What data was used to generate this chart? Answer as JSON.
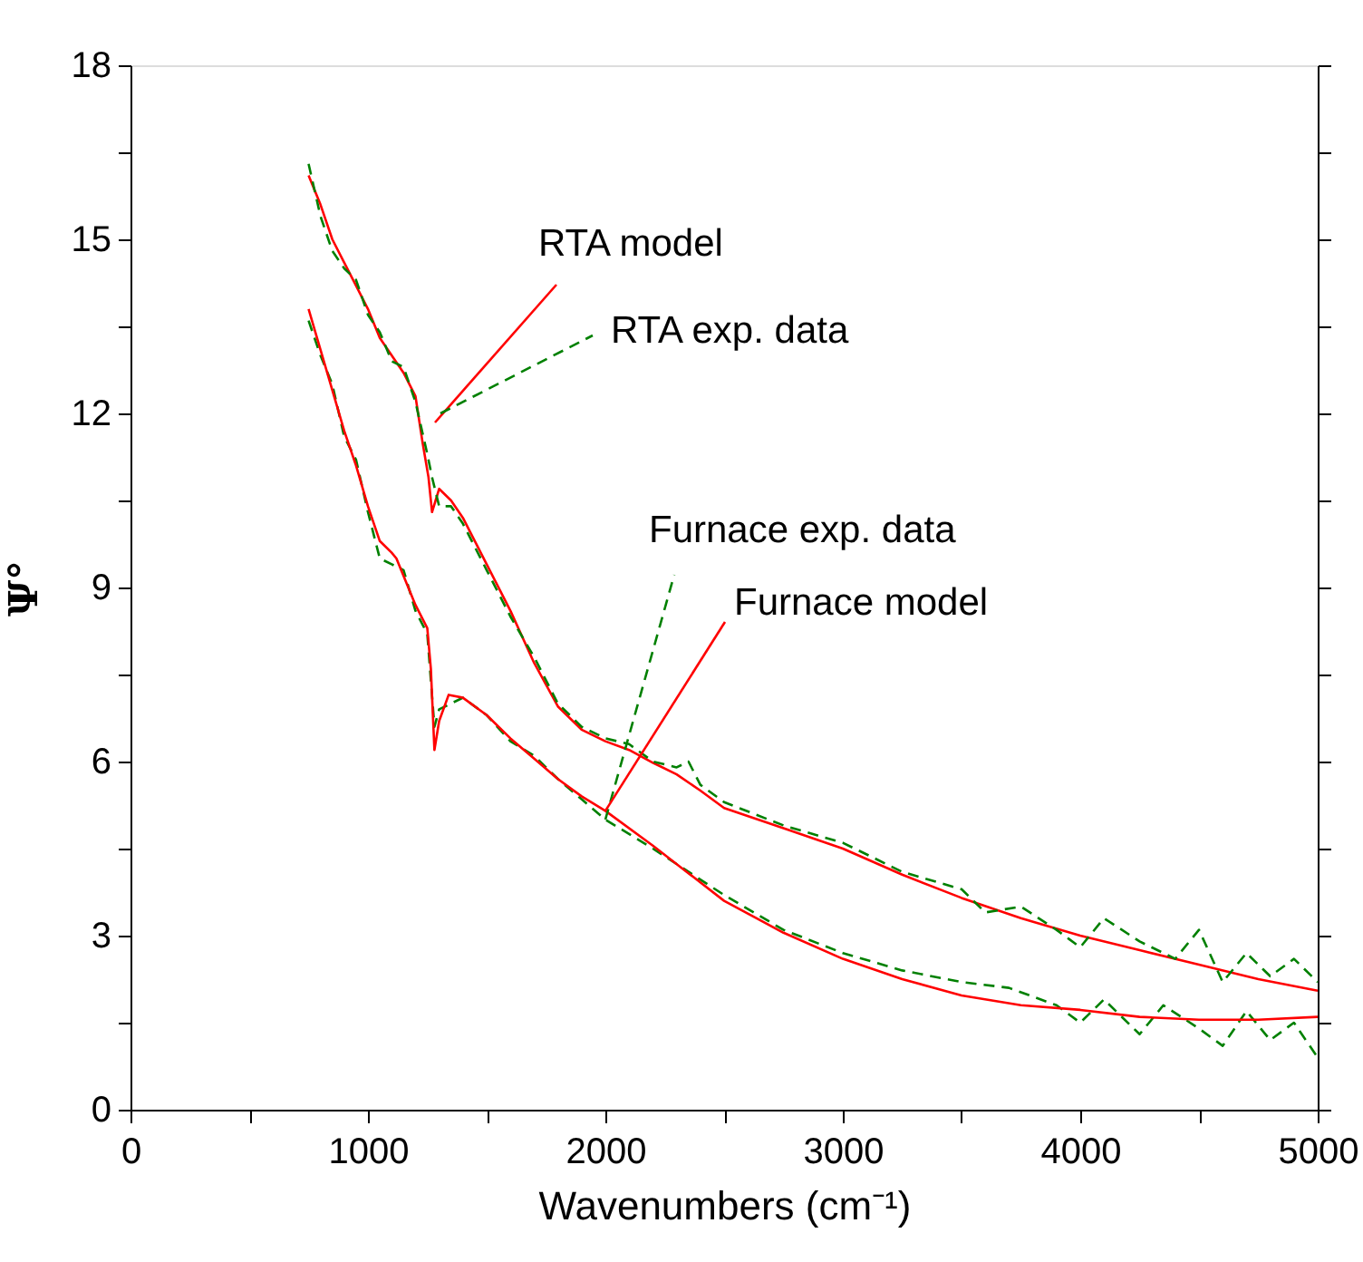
{
  "chart_data": {
    "type": "line",
    "xlabel": "Wavenumbers (cm⁻¹)",
    "ylabel": "Ψ°",
    "xlim": [
      0,
      5000
    ],
    "ylim": [
      0,
      18
    ],
    "xticks": [
      0,
      {
        "value": 500,
        "label": null
      },
      1000,
      {
        "value": 1500,
        "label": null
      },
      2000,
      {
        "value": 2500,
        "label": null
      },
      3000,
      {
        "value": 3500,
        "label": null
      },
      4000,
      {
        "value": 4500,
        "label": null
      },
      5000
    ],
    "yticks": [
      0,
      {
        "value": 1.5,
        "label": null
      },
      3,
      {
        "value": 4.5,
        "label": null
      },
      6,
      {
        "value": 7.5,
        "label": null
      },
      9,
      {
        "value": 10.5,
        "label": null
      },
      12,
      {
        "value": 13.5,
        "label": null
      },
      15,
      {
        "value": 16.5,
        "label": null
      },
      18
    ],
    "grid": false,
    "marker": "none",
    "series": [
      {
        "color": "#ff0000",
        "line_style": "solid",
        "x": [
          750,
          800,
          850,
          900,
          950,
          1000,
          1050,
          1100,
          1150,
          1200,
          1230,
          1255,
          1270,
          1285,
          1300,
          1350,
          1400,
          1500,
          1600,
          1700,
          1800,
          1900,
          2000,
          2100,
          2200,
          2300,
          2400,
          2500,
          2750,
          3000,
          3250,
          3500,
          3750,
          4000,
          4250,
          4500,
          4750,
          5000
        ],
        "values": [
          16.1,
          15.6,
          15.0,
          14.6,
          14.2,
          13.8,
          13.3,
          13.0,
          12.7,
          12.3,
          11.5,
          10.9,
          10.3,
          10.5,
          10.7,
          10.5,
          10.2,
          9.4,
          8.6,
          7.7,
          6.95,
          6.55,
          6.35,
          6.2,
          5.98,
          5.78,
          5.5,
          5.2,
          4.85,
          4.5,
          4.05,
          3.65,
          3.3,
          3.0,
          2.75,
          2.5,
          2.25,
          2.05
        ]
      },
      {
        "color": "#008000",
        "line_style": "dashed",
        "x": [
          750,
          800,
          850,
          900,
          950,
          1000,
          1050,
          1100,
          1150,
          1200,
          1250,
          1270,
          1300,
          1350,
          1400,
          1500,
          1600,
          1700,
          1800,
          1900,
          2000,
          2100,
          2200,
          2300,
          2350,
          2400,
          2500,
          2750,
          3000,
          3250,
          3500,
          3600,
          3750,
          3900,
          4000,
          4100,
          4250,
          4400,
          4500,
          4600,
          4700,
          4800,
          4900,
          5000
        ],
        "values": [
          16.3,
          15.4,
          14.8,
          14.5,
          14.3,
          13.7,
          13.4,
          12.9,
          12.8,
          12.2,
          11.3,
          10.9,
          10.4,
          10.4,
          10.1,
          9.3,
          8.5,
          7.8,
          7.0,
          6.6,
          6.4,
          6.3,
          6.0,
          5.9,
          6.0,
          5.6,
          5.3,
          4.9,
          4.6,
          4.1,
          3.8,
          3.4,
          3.5,
          3.1,
          2.8,
          3.3,
          2.9,
          2.6,
          3.1,
          2.2,
          2.7,
          2.3,
          2.6,
          2.2
        ]
      },
      {
        "color": "#008000",
        "line_style": "dashed",
        "x": [
          750,
          800,
          850,
          900,
          950,
          1000,
          1050,
          1100,
          1150,
          1200,
          1250,
          1280,
          1300,
          1350,
          1400,
          1500,
          1600,
          1700,
          1800,
          1900,
          2000,
          2200,
          2500,
          2750,
          3000,
          3250,
          3500,
          3700,
          3900,
          4000,
          4100,
          4250,
          4350,
          4500,
          4600,
          4700,
          4800,
          4900,
          5000
        ],
        "values": [
          13.6,
          13.0,
          12.5,
          11.6,
          11.2,
          10.3,
          9.5,
          9.4,
          9.3,
          8.6,
          8.2,
          6.6,
          6.9,
          7.0,
          7.1,
          6.8,
          6.35,
          6.1,
          5.7,
          5.35,
          5.0,
          4.5,
          3.7,
          3.1,
          2.7,
          2.4,
          2.2,
          2.1,
          1.8,
          1.5,
          1.9,
          1.3,
          1.8,
          1.4,
          1.1,
          1.7,
          1.2,
          1.5,
          0.9
        ]
      },
      {
        "color": "#ff0000",
        "line_style": "solid",
        "x": [
          750,
          800,
          850,
          900,
          950,
          1000,
          1050,
          1100,
          1120,
          1150,
          1200,
          1250,
          1265,
          1280,
          1300,
          1340,
          1400,
          1500,
          1600,
          1700,
          1800,
          1900,
          2000,
          2200,
          2500,
          2750,
          3000,
          3250,
          3500,
          3750,
          4000,
          4250,
          4500,
          4750,
          5000
        ],
        "values": [
          13.8,
          13.1,
          12.4,
          11.7,
          11.1,
          10.4,
          9.8,
          9.6,
          9.5,
          9.2,
          8.7,
          8.3,
          7.6,
          6.2,
          6.7,
          7.15,
          7.1,
          6.8,
          6.4,
          6.05,
          5.7,
          5.4,
          5.15,
          4.55,
          3.6,
          3.05,
          2.6,
          2.25,
          1.97,
          1.8,
          1.72,
          1.6,
          1.55,
          1.55,
          1.6
        ]
      }
    ],
    "annotations": [
      "RTA model",
      "RTA exp. data",
      {
        "text": "Furnace exp. data",
        "x": 2000,
        "y": 5.0
      },
      {
        "text": "Furnace model",
        "x": 2000,
        "y": 5.15
      }
    ]
  }
}
